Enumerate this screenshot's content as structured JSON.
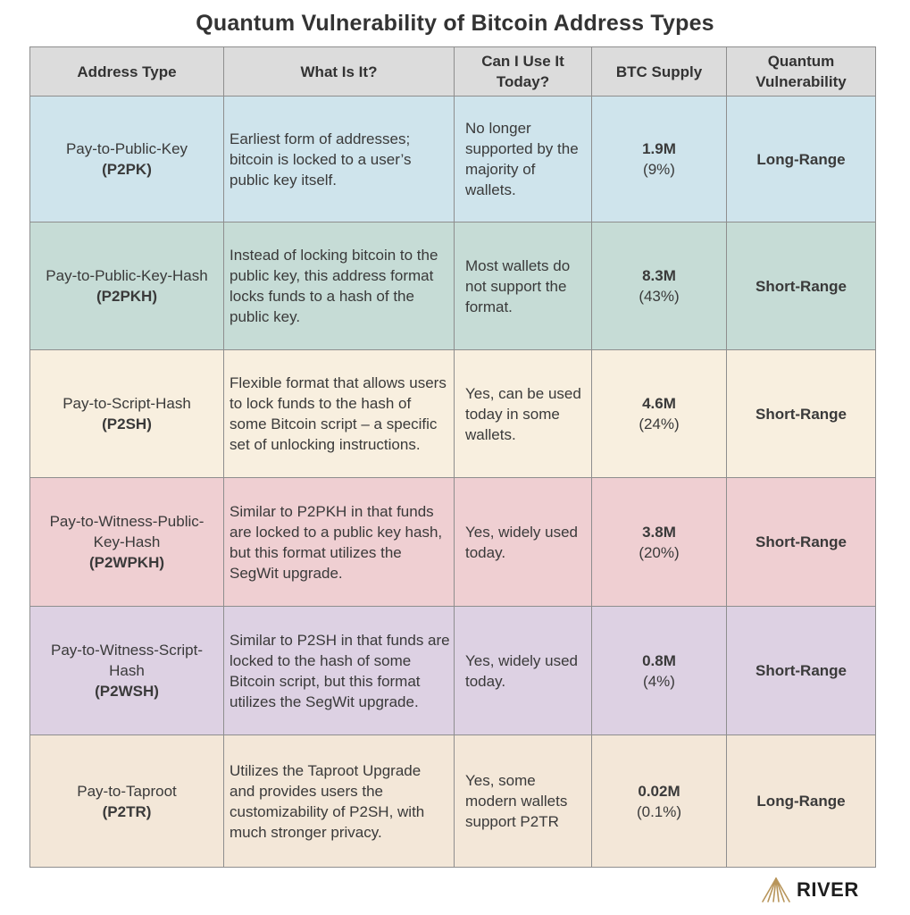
{
  "title": "Quantum Vulnerability of Bitcoin Address Types",
  "headers": {
    "address_type": "Address Type",
    "what_is_it": "What Is It?",
    "can_use_line1": "Can I Use It",
    "can_use_line2": "Today?",
    "btc_supply": "BTC Supply",
    "vuln_line1": "Quantum",
    "vuln_line2": "Vulnerability"
  },
  "rows": [
    {
      "color": "#cfe4ec",
      "name": "Pay-to-Public-Key",
      "code": "(P2PK)",
      "what": "Earliest form of addresses; bitcoin is locked to a user’s public key itself.",
      "use": "No longer supported by the majority of wallets.",
      "supply": "1.9M",
      "percent": "(9%)",
      "vulnerability": "Long-Range"
    },
    {
      "color": "#c6dcd6",
      "name": "Pay-to-Public-Key-Hash",
      "code": "(P2PKH)",
      "what": "Instead of locking bitcoin to the public key, this address format locks funds to a hash of the public key.",
      "use": "Most wallets do not support the format.",
      "supply": "8.3M",
      "percent": "(43%)",
      "vulnerability": "Short-Range"
    },
    {
      "color": "#f8efdf",
      "name": "Pay-to-Script-Hash",
      "code": "(P2SH)",
      "what": "Flexible format that allows users to lock funds to the hash of some Bitcoin script – a specific set of unlocking instructions.",
      "use": "Yes, can be used today in some wallets.",
      "supply": "4.6M",
      "percent": "(24%)",
      "vulnerability": "Short-Range"
    },
    {
      "color": "#efcfd2",
      "name": "Pay-to-Witness-Public-Key-Hash",
      "code": "(P2WPKH)",
      "what": "Similar to P2PKH in that funds are locked to a public key hash, but this format utilizes the SegWit upgrade.",
      "use": "Yes, widely used today.",
      "supply": "3.8M",
      "percent": "(20%)",
      "vulnerability": "Short-Range"
    },
    {
      "color": "#ddd1e3",
      "name": "Pay-to-Witness-Script-Hash",
      "code": "(P2WSH)",
      "what": "Similar to P2SH in that funds are locked to the hash of some Bitcoin script, but this format utilizes the SegWit upgrade.",
      "use": "Yes, widely used today.",
      "supply": "0.8M",
      "percent": "(4%)",
      "vulnerability": "Short-Range"
    },
    {
      "color": "#f3e7d8",
      "name": "Pay-to-Taproot",
      "code": "(P2TR)",
      "what": "Utilizes the Taproot Upgrade and provides users the customizability of P2SH, with much stronger privacy.",
      "use": "Yes, some modern wallets support P2TR",
      "supply": "0.02M",
      "percent": "(0.1%)",
      "vulnerability": "Long-Range"
    }
  ],
  "logo": {
    "text": "RIVER",
    "icon": "river-logo-icon",
    "accent": "#b8955a"
  }
}
